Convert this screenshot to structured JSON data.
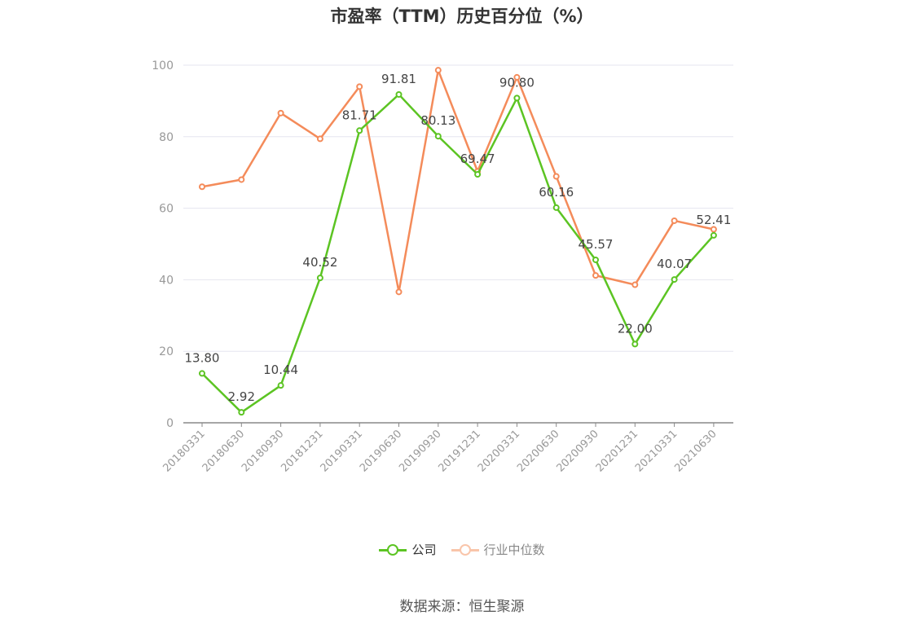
{
  "chart_data": {
    "type": "line",
    "title": "市盈率（TTM）历史百分位（%）",
    "categories": [
      "20180331",
      "20180630",
      "20180930",
      "20181231",
      "20190331",
      "20190630",
      "20190930",
      "20191231",
      "20200331",
      "20200630",
      "20200930",
      "20201231",
      "20210331",
      "20210630"
    ],
    "ylim": [
      0,
      100
    ],
    "yticks": [
      0,
      20,
      40,
      60,
      80,
      100
    ],
    "grid": true,
    "legend_position": "bottom",
    "series": [
      {
        "name": "公司",
        "color": "#5cc423",
        "values": [
          13.8,
          2.92,
          10.44,
          40.52,
          81.71,
          91.81,
          80.13,
          69.47,
          90.8,
          60.16,
          45.57,
          22.0,
          40.07,
          52.41
        ],
        "labels": [
          "13.80",
          "2.92",
          "10.44",
          "40.52",
          "81.71",
          "91.81",
          "80.13",
          "69.47",
          "90.80",
          "60.16",
          "45.57",
          "22.00",
          "40.07",
          "52.41"
        ]
      },
      {
        "name": "行业中位数",
        "color": "#f48b5a",
        "values": [
          66.0,
          68.0,
          86.6,
          79.4,
          94.0,
          36.6,
          98.6,
          70.3,
          96.6,
          68.9,
          41.2,
          38.6,
          56.5,
          54.1
        ]
      }
    ]
  },
  "source": "数据来源：恒生聚源"
}
